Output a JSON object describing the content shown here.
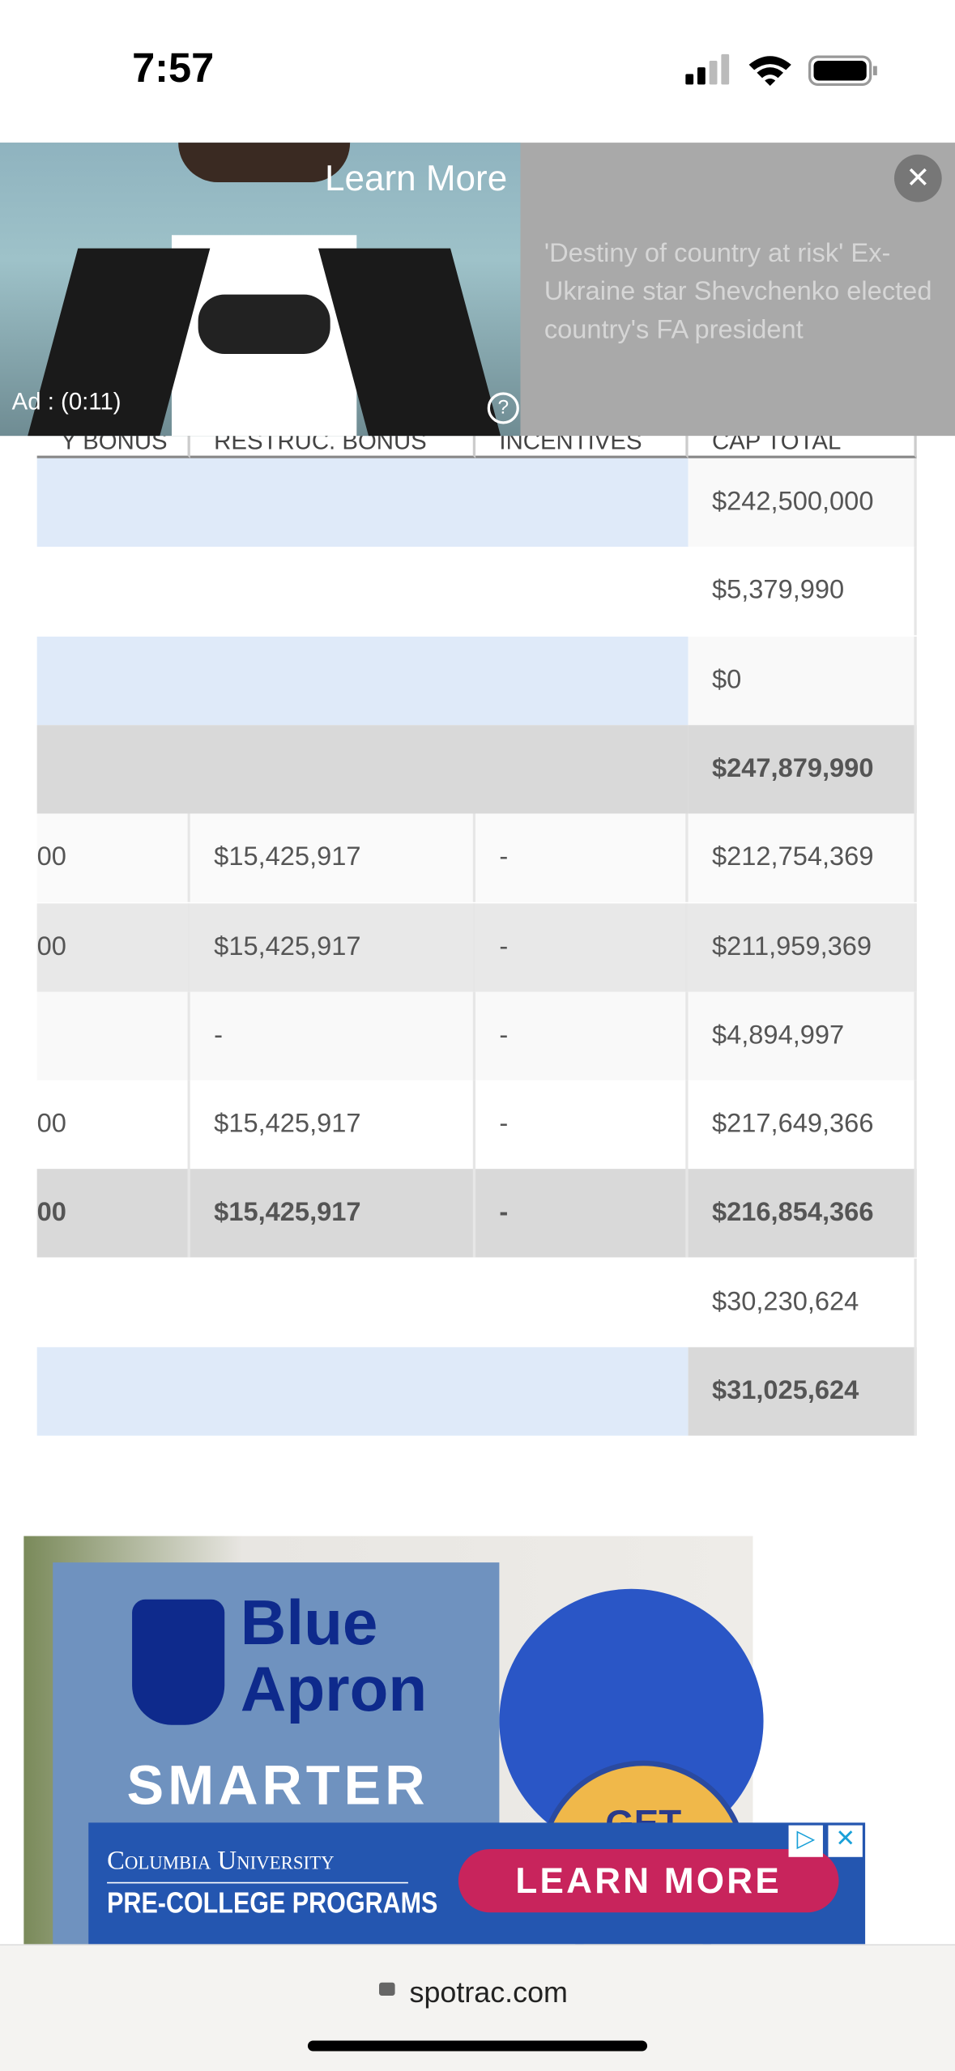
{
  "status_bar": {
    "time": "7:57"
  },
  "video_ad": {
    "cta": "Learn More",
    "timer": "Ad : (0:11)",
    "help": "?",
    "close": "✕",
    "headline": "'Destiny of country at risk' Ex-Ukraine star Shevchenko elected country's FA president"
  },
  "table": {
    "headers": [
      "Y BONUS",
      "RESTRUC. BONUS",
      "INCENTIVES",
      "CAP TOTAL"
    ],
    "rows": [
      {
        "cap_total": "$242,500,000"
      },
      {
        "cap_total": "$5,379,990"
      },
      {
        "cap_total": "$0"
      },
      {
        "cap_total": "$247,879,990"
      },
      {
        "bonus": "00",
        "restruc_bonus": "$15,425,917",
        "incentives": "-",
        "cap_total": "$212,754,369"
      },
      {
        "bonus": "00",
        "restruc_bonus": "$15,425,917",
        "incentives": "-",
        "cap_total": "$211,959,369"
      },
      {
        "restruc_bonus": "-",
        "incentives": "-",
        "cap_total": "$4,894,997"
      },
      {
        "bonus": "00",
        "restruc_bonus": "$15,425,917",
        "incentives": "-",
        "cap_total": "$217,649,366"
      },
      {
        "bonus": "00",
        "restruc_bonus": "$15,425,917",
        "incentives": "-",
        "cap_total": "$216,854,366"
      },
      {
        "cap_total": "$30,230,624"
      },
      {
        "cap_total": "$31,025,624"
      }
    ]
  },
  "food_ad": {
    "brand_line1": "Blue",
    "brand_line2": "Apron",
    "tagline": "SMARTER",
    "badge": "GET"
  },
  "banner_ad": {
    "school": "Columbia University",
    "program": "PRE-COLLEGE PROGRAMS",
    "cta": "LEARN MORE"
  },
  "browser": {
    "url": "spotrac.com"
  }
}
